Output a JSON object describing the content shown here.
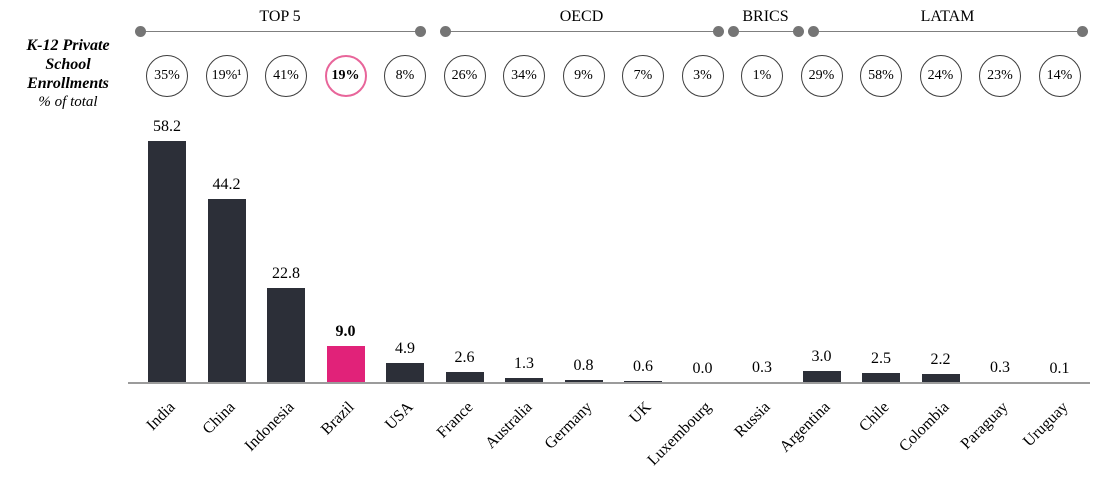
{
  "header": {
    "line1": "K-12 Private",
    "line2": "School",
    "line3": "Enrollments",
    "subtitle": "% of total"
  },
  "chart_data": {
    "type": "bar",
    "title": "K-12 Private School Enrollments, % of total",
    "groups": [
      {
        "label": "TOP 5",
        "from": 0,
        "to": 4
      },
      {
        "label": "OECD",
        "from": 5,
        "to": 9
      },
      {
        "label": "BRICS",
        "from": 10,
        "to": 10
      },
      {
        "label": "LATAM",
        "from": 11,
        "to": 15
      }
    ],
    "categories": [
      "India",
      "China",
      "Indonesia",
      "Brazil",
      "USA",
      "France",
      "Australia",
      "Germany",
      "UK",
      "Luxembourg",
      "Russia",
      "Argentina",
      "Chile",
      "Colombia",
      "Paraguay",
      "Uruguay"
    ],
    "values": [
      58.2,
      44.2,
      22.8,
      9.0,
      4.9,
      2.6,
      1.3,
      0.8,
      0.6,
      0.0,
      0.3,
      3.0,
      2.5,
      2.2,
      0.3,
      0.1
    ],
    "enrollment_share_labels": [
      "35%",
      "19%¹",
      "41%",
      "19%",
      "8%",
      "26%",
      "34%",
      "9%",
      "7%",
      "3%",
      "1%",
      "29%",
      "58%",
      "24%",
      "23%",
      "14%"
    ],
    "highlight_index": 3,
    "highlight_category": "Brazil",
    "ylim": [
      0,
      60
    ],
    "grid": false,
    "legend": "none",
    "colors": {
      "bar": "#2c2f38",
      "highlight_bar": "#e12279",
      "highlight_circle_border": "#e8659a",
      "circle_border": "#3d3d3d",
      "bracket": "#757575",
      "axis_line": "#9b9b9b",
      "text": "#000000"
    }
  }
}
